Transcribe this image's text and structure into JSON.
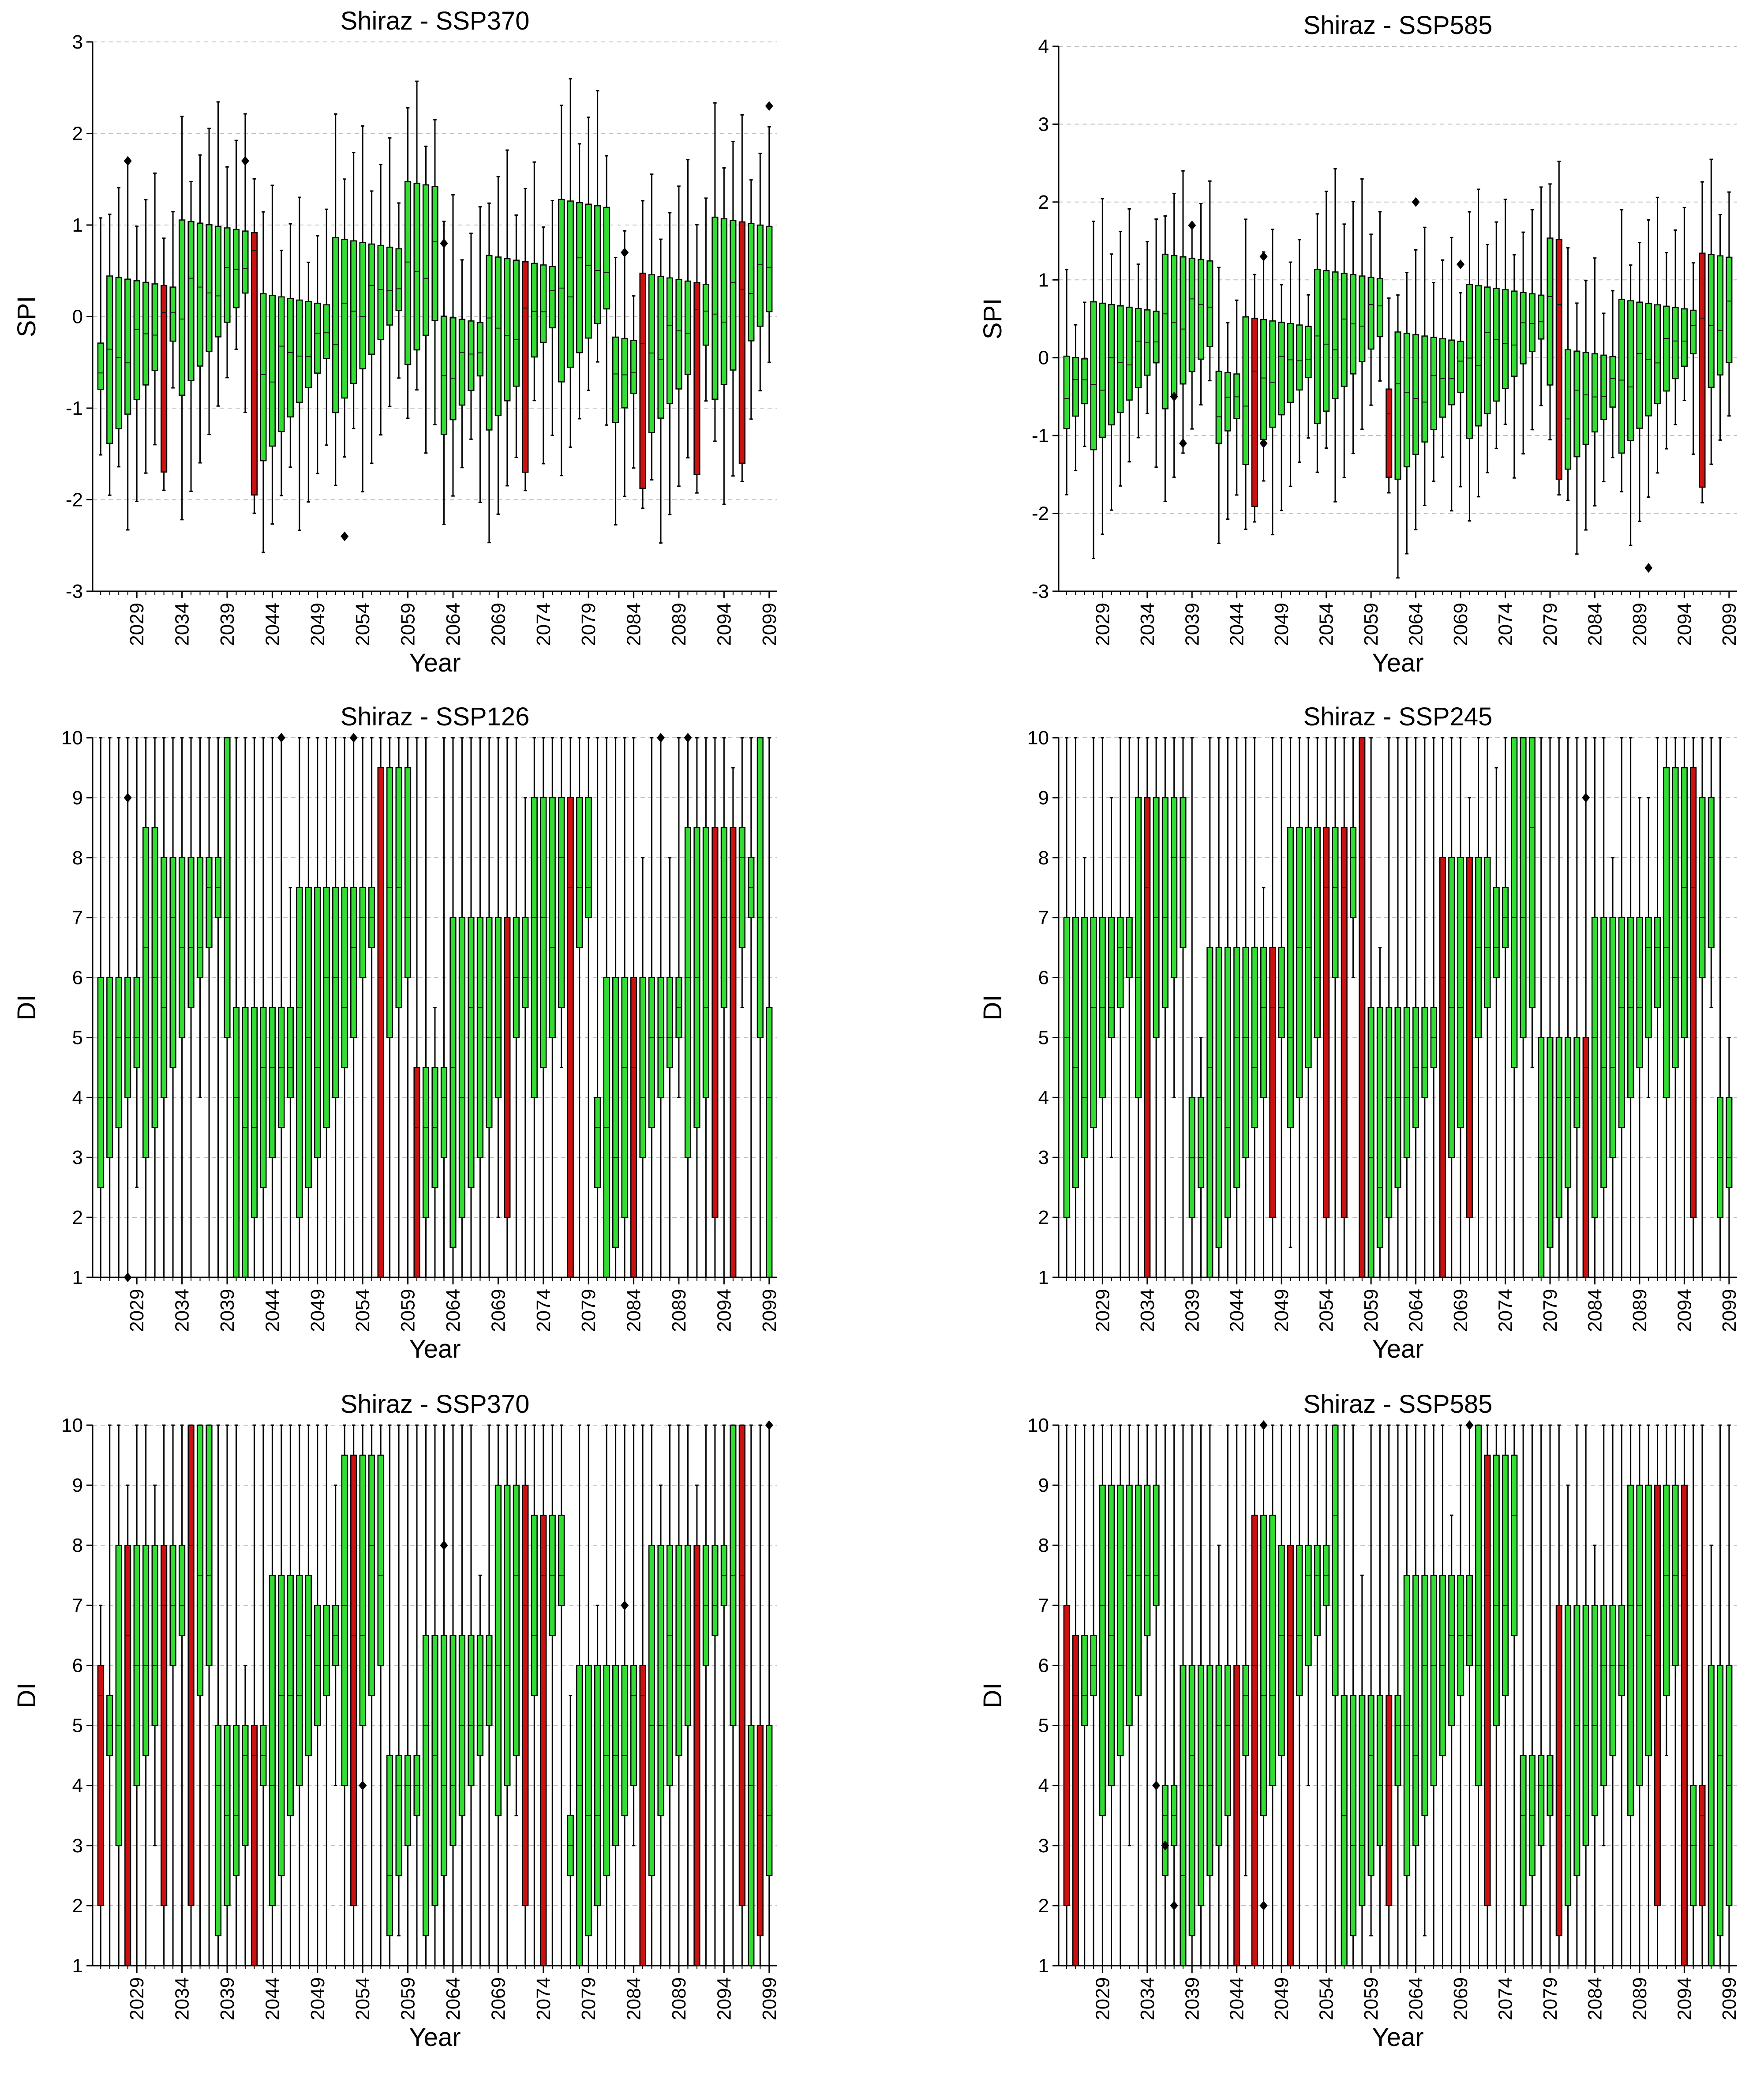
{
  "colors": {
    "normal_box": "#33dd33",
    "highlight_box": "#cc1111",
    "box_edge": "#000000",
    "grid": "#bfbfbf"
  },
  "chart_data": [
    {
      "type": "box",
      "title": "Shiraz - SSP370",
      "xlabel": "Year",
      "ylabel": "SPI",
      "ylim": [
        -3,
        3
      ],
      "yticks": [
        -3,
        -2,
        -1,
        0,
        1,
        2,
        3
      ],
      "grid": "horizontal dashed",
      "x_start": 2025,
      "x_end": 2099,
      "xticks": [
        "2029",
        "2034",
        "2039",
        "2044",
        "2049",
        "2054",
        "2059",
        "2064",
        "2069",
        "2074",
        "2079",
        "2084",
        "2089",
        "2094",
        "2099"
      ],
      "red_years": [
        2032,
        2042,
        2072,
        2085,
        2091,
        2096
      ],
      "outliers": [
        {
          "year": 2028,
          "value": 1.7
        },
        {
          "year": 2041,
          "value": 1.7
        },
        {
          "year": 2052,
          "value": -2.4
        },
        {
          "year": 2063,
          "value": 0.8
        },
        {
          "year": 2083,
          "value": 0.7
        },
        {
          "year": 2099,
          "value": 2.3
        }
      ]
    },
    {
      "type": "box",
      "title": "Shiraz - SSP585",
      "xlabel": "Year",
      "ylabel": "SPI",
      "ylim": [
        -3,
        4
      ],
      "yticks": [
        -3,
        -2,
        -1,
        0,
        1,
        2,
        3,
        4
      ],
      "grid": "horizontal dashed",
      "x_start": 2025,
      "x_end": 2099,
      "xticks": [
        "2029",
        "2034",
        "2039",
        "2044",
        "2049",
        "2054",
        "2059",
        "2064",
        "2069",
        "2074",
        "2079",
        "2084",
        "2089",
        "2094",
        "2099"
      ],
      "red_years": [
        2046,
        2061,
        2080,
        2096
      ],
      "outliers": [
        {
          "year": 2037,
          "value": -0.5
        },
        {
          "year": 2038,
          "value": -1.1
        },
        {
          "year": 2039,
          "value": 1.7
        },
        {
          "year": 2047,
          "value": 1.3
        },
        {
          "year": 2047,
          "value": -1.1
        },
        {
          "year": 2064,
          "value": 2.0
        },
        {
          "year": 2069,
          "value": 1.2
        },
        {
          "year": 2090,
          "value": -2.7
        }
      ]
    },
    {
      "type": "box",
      "title": "Shiraz - SSP126",
      "xlabel": "Year",
      "ylabel": "DI",
      "ylim": [
        1,
        10
      ],
      "yticks": [
        1,
        2,
        3,
        4,
        5,
        6,
        7,
        8,
        9,
        10
      ],
      "grid": "horizontal dashed",
      "x_start": 2025,
      "x_end": 2099,
      "xticks": [
        "2029",
        "2034",
        "2039",
        "2044",
        "2049",
        "2054",
        "2059",
        "2064",
        "2069",
        "2074",
        "2079",
        "2084",
        "2089",
        "2094",
        "2099"
      ],
      "red_years": [
        2056,
        2060,
        2070,
        2077,
        2084,
        2093,
        2095
      ],
      "outliers": [
        {
          "year": 2028,
          "value": 9.0
        },
        {
          "year": 2028,
          "value": 1.0
        },
        {
          "year": 2045,
          "value": 10.0
        },
        {
          "year": 2053,
          "value": 10.0
        },
        {
          "year": 2087,
          "value": 10.0
        },
        {
          "year": 2090,
          "value": 10.0
        }
      ]
    },
    {
      "type": "box",
      "title": "Shiraz - SSP245",
      "xlabel": "Year",
      "ylabel": "DI",
      "ylim": [
        1,
        10
      ],
      "yticks": [
        1,
        2,
        3,
        4,
        5,
        6,
        7,
        8,
        9,
        10
      ],
      "grid": "horizontal dashed",
      "x_start": 2025,
      "x_end": 2099,
      "xticks": [
        "2029",
        "2034",
        "2039",
        "2044",
        "2049",
        "2054",
        "2059",
        "2064",
        "2069",
        "2074",
        "2079",
        "2084",
        "2089",
        "2094",
        "2099"
      ],
      "red_years": [
        2034,
        2048,
        2054,
        2056,
        2058,
        2067,
        2070,
        2083,
        2095
      ],
      "outliers": [
        {
          "year": 2083,
          "value": 9.0
        }
      ]
    },
    {
      "type": "box",
      "title": "Shiraz - SSP370",
      "xlabel": "Year",
      "ylabel": "DI",
      "ylim": [
        1,
        10
      ],
      "yticks": [
        1,
        2,
        3,
        4,
        5,
        6,
        7,
        8,
        9,
        10
      ],
      "grid": "horizontal dashed",
      "x_start": 2025,
      "x_end": 2099,
      "xticks": [
        "2029",
        "2034",
        "2039",
        "2044",
        "2049",
        "2054",
        "2059",
        "2064",
        "2069",
        "2074",
        "2079",
        "2084",
        "2089",
        "2094",
        "2099"
      ],
      "red_years": [
        2025,
        2028,
        2032,
        2035,
        2042,
        2053,
        2072,
        2074,
        2085,
        2091,
        2096,
        2098
      ],
      "outliers": [
        {
          "year": 2054,
          "value": 4.0
        },
        {
          "year": 2063,
          "value": 8.0
        },
        {
          "year": 2083,
          "value": 7.0
        },
        {
          "year": 2099,
          "value": 10.0
        }
      ]
    },
    {
      "type": "box",
      "title": "Shiraz - SSP585",
      "xlabel": "Year",
      "ylabel": "DI",
      "ylim": [
        1,
        10
      ],
      "yticks": [
        1,
        2,
        3,
        4,
        5,
        6,
        7,
        8,
        9,
        10
      ],
      "grid": "horizontal dashed",
      "x_start": 2025,
      "x_end": 2099,
      "xticks": [
        "2029",
        "2034",
        "2039",
        "2044",
        "2049",
        "2054",
        "2059",
        "2064",
        "2069",
        "2074",
        "2079",
        "2084",
        "2089",
        "2094",
        "2099"
      ],
      "red_years": [
        2025,
        2026,
        2044,
        2046,
        2050,
        2061,
        2072,
        2080,
        2091,
        2094,
        2096
      ],
      "outliers": [
        {
          "year": 2035,
          "value": 4.0
        },
        {
          "year": 2036,
          "value": 3.0
        },
        {
          "year": 2037,
          "value": 2.0
        },
        {
          "year": 2047,
          "value": 10.0
        },
        {
          "year": 2047,
          "value": 2.0
        },
        {
          "year": 2070,
          "value": 10.0
        }
      ]
    }
  ]
}
